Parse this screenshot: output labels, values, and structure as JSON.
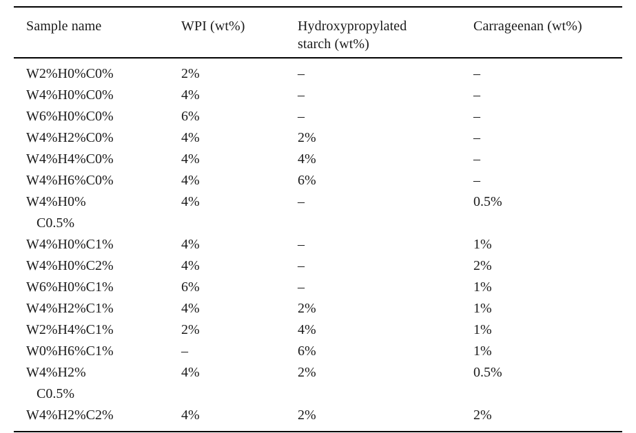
{
  "colors": {
    "background": "#ffffff",
    "text": "#1a1a1a",
    "rule": "#000000"
  },
  "table": {
    "columns": [
      {
        "label": "Sample name"
      },
      {
        "label": "WPI (wt%)"
      },
      {
        "label": "Hydroxypropylated starch (wt%)",
        "label_line1": "Hydroxypropylated",
        "label_line2": "starch (wt%)"
      },
      {
        "label": "Carrageenan (wt%)"
      }
    ],
    "rows": [
      {
        "sample": "W2%H0%C0%",
        "wpi": "2%",
        "starch": "–",
        "carrageenan": "–"
      },
      {
        "sample": "W4%H0%C0%",
        "wpi": "4%",
        "starch": "–",
        "carrageenan": "–"
      },
      {
        "sample": "W6%H0%C0%",
        "wpi": "6%",
        "starch": "–",
        "carrageenan": "–"
      },
      {
        "sample": "W4%H2%C0%",
        "wpi": "4%",
        "starch": "2%",
        "carrageenan": "–"
      },
      {
        "sample": "W4%H4%C0%",
        "wpi": "4%",
        "starch": "4%",
        "carrageenan": "–"
      },
      {
        "sample": "W4%H6%C0%",
        "wpi": "4%",
        "starch": "6%",
        "carrageenan": "–"
      },
      {
        "sample": "W4%H0%",
        "sample_wrap": "C0.5%",
        "wpi": "4%",
        "starch": "–",
        "carrageenan": "0.5%"
      },
      {
        "sample": "W4%H0%C1%",
        "wpi": "4%",
        "starch": "–",
        "carrageenan": "1%"
      },
      {
        "sample": "W4%H0%C2%",
        "wpi": "4%",
        "starch": "–",
        "carrageenan": "2%"
      },
      {
        "sample": "W6%H0%C1%",
        "wpi": "6%",
        "starch": "–",
        "carrageenan": "1%"
      },
      {
        "sample": "W4%H2%C1%",
        "wpi": "4%",
        "starch": "2%",
        "carrageenan": "1%"
      },
      {
        "sample": "W2%H4%C1%",
        "wpi": "2%",
        "starch": "4%",
        "carrageenan": "1%"
      },
      {
        "sample": "W0%H6%C1%",
        "wpi": "–",
        "starch": "6%",
        "carrageenan": "1%"
      },
      {
        "sample": "W4%H2%",
        "sample_wrap": "C0.5%",
        "wpi": "4%",
        "starch": "2%",
        "carrageenan": "0.5%"
      },
      {
        "sample": "W4%H2%C2%",
        "wpi": "4%",
        "starch": "2%",
        "carrageenan": "2%"
      }
    ]
  }
}
